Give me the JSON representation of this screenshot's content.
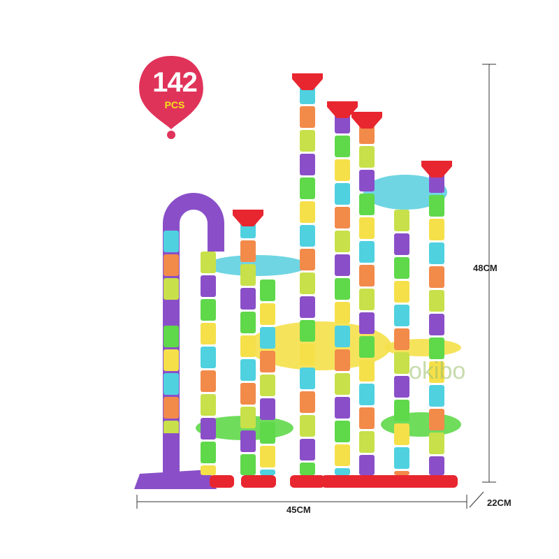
{
  "badge": {
    "count": "142",
    "unit": "PCS",
    "color": "#e0335a",
    "unit_color": "#f7e31b"
  },
  "dimensions": {
    "height": "48CM",
    "width": "45CM",
    "depth": "22CM"
  },
  "watermark": "okibo",
  "palette": [
    "#4fd1e0",
    "#f28a4a",
    "#c8e04a",
    "#8a4fc8",
    "#5fd84a",
    "#f5e04a"
  ],
  "accent_colors": {
    "funnel": "#e8262f",
    "base": "#e8262f",
    "purple_base": "#8a4fc8"
  }
}
